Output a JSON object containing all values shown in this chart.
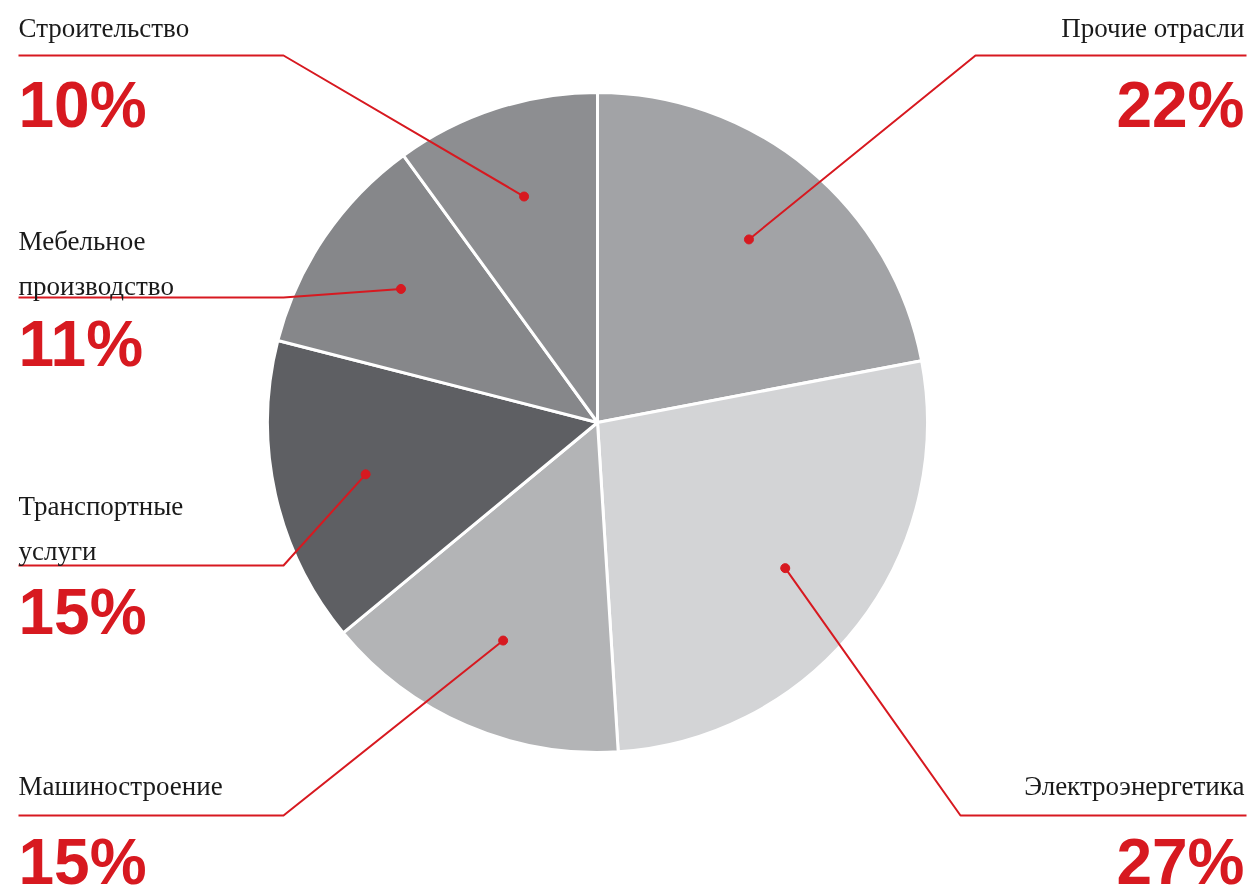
{
  "chart_data": {
    "type": "pie",
    "categories": [
      "Прочие отрасли",
      "Электроэнергетика",
      "Машиностроение",
      "Транспортные услуги",
      "Мебельное производство",
      "Строительство"
    ],
    "values": [
      22,
      27,
      15,
      15,
      11,
      10
    ],
    "colors": [
      "#a2a3a6",
      "#d3d4d6",
      "#b3b4b6",
      "#5e5f63",
      "#86878a",
      "#8d8e91"
    ],
    "value_labels": [
      "22%",
      "27%",
      "15%",
      "15%",
      "11%",
      "10%"
    ]
  }
}
